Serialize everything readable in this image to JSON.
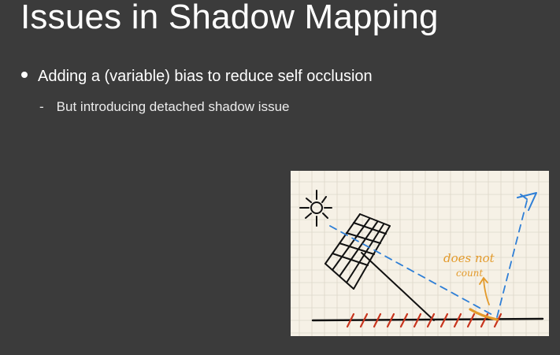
{
  "slide": {
    "title": "Issues in Shadow Mapping",
    "bullet": "Adding a (variable) bias to reduce self occlusion",
    "sub_bullet_marker": "-",
    "sub_bullet": "But introducing detached shadow issue"
  },
  "sketch": {
    "annotation_line1": "does not",
    "annotation_line2": "count",
    "colors": {
      "paper": "#f6f1e6",
      "grid": "#dcd6c8",
      "ink": "#111111",
      "light_path": "#2f7fd6",
      "shadow_hatch": "#c8351e",
      "annotation": "#e39a2a"
    }
  }
}
